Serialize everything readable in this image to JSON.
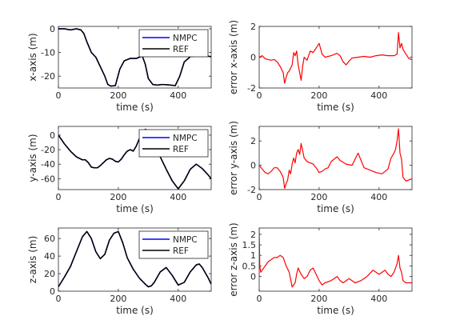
{
  "chart_data": [
    {
      "type": "line",
      "xlabel": "time (s)",
      "ylabel": "x-axis (m)",
      "xlim": [
        0,
        510
      ],
      "ylim": [
        -25,
        1
      ],
      "xticks": [
        "0",
        "200",
        "400"
      ],
      "yticks": [
        "0",
        "-10",
        "-20"
      ],
      "grid": false,
      "legend": {
        "position": "top-right",
        "entries": [
          "NMPC",
          "REF"
        ]
      },
      "series": [
        {
          "name": "NMPC",
          "color": "#0000ff",
          "x": [
            0,
            20,
            40,
            60,
            75,
            85,
            95,
            110,
            125,
            140,
            155,
            165,
            175,
            190,
            205,
            220,
            240,
            260,
            280,
            290,
            300,
            315,
            330,
            345,
            360,
            375,
            390,
            405,
            420,
            440,
            460,
            480,
            500,
            510
          ],
          "y": [
            0,
            0,
            -0.5,
            0,
            -0.5,
            -2,
            -5.5,
            -10,
            -12,
            -16,
            -20,
            -23.5,
            -24.2,
            -24,
            -17,
            -13.5,
            -12.5,
            -12.5,
            -11.5,
            -15,
            -21,
            -23.5,
            -23.8,
            -23.5,
            -23.6,
            -23.8,
            -24,
            -20,
            -14,
            -11.8,
            -11.5,
            -11.5,
            -11.6,
            -11.8
          ]
        },
        {
          "name": "REF",
          "color": "#000000",
          "x": [
            0,
            20,
            40,
            60,
            75,
            85,
            95,
            110,
            125,
            140,
            155,
            165,
            175,
            190,
            205,
            220,
            240,
            260,
            280,
            290,
            300,
            315,
            330,
            345,
            360,
            375,
            390,
            405,
            420,
            440,
            460,
            480,
            500,
            510
          ],
          "y": [
            0,
            0,
            -0.5,
            0,
            -0.5,
            -2,
            -5.5,
            -10,
            -12,
            -16,
            -20,
            -23.5,
            -24.2,
            -24,
            -17,
            -13.5,
            -12.5,
            -12.5,
            -11.5,
            -15,
            -21,
            -23.5,
            -23.8,
            -23.5,
            -23.6,
            -23.8,
            -24,
            -20,
            -14,
            -11.8,
            -11.5,
            -11.5,
            -11.6,
            -11.8
          ]
        }
      ]
    },
    {
      "type": "line",
      "xlabel": "time (s)",
      "ylabel": "error x-axis (m)",
      "xlim": [
        0,
        510
      ],
      "ylim": [
        -2,
        2
      ],
      "xticks": [
        "0",
        "200",
        "400"
      ],
      "yticks": [
        "-2",
        "0",
        "2"
      ],
      "grid": false,
      "series": [
        {
          "color": "#ff0000",
          "x": [
            0,
            10,
            20,
            30,
            40,
            50,
            60,
            70,
            80,
            85,
            90,
            95,
            100,
            110,
            115,
            120,
            125,
            130,
            135,
            140,
            145,
            150,
            160,
            170,
            180,
            190,
            200,
            210,
            220,
            240,
            260,
            270,
            280,
            290,
            300,
            310,
            330,
            350,
            370,
            390,
            410,
            430,
            450,
            460,
            465,
            470,
            475,
            480,
            490,
            500,
            510
          ],
          "y": [
            0,
            0.1,
            -0.1,
            -0.15,
            -0.2,
            -0.15,
            -0.3,
            -0.6,
            -1.0,
            -1.7,
            -1.3,
            -1.0,
            -0.9,
            -0.5,
            0.3,
            0.1,
            0.4,
            -0.5,
            -1.0,
            -1.5,
            -0.6,
            0.0,
            -0.2,
            0.4,
            0.3,
            0.6,
            0.9,
            0.2,
            0.0,
            0.1,
            0.25,
            0.1,
            -0.3,
            -0.5,
            -0.25,
            -0.05,
            0.0,
            0.05,
            0.0,
            0.1,
            0.15,
            0.1,
            0.1,
            0.2,
            1.6,
            0.6,
            0.9,
            0.5,
            0.2,
            -0.1,
            -0.15
          ]
        }
      ]
    },
    {
      "type": "line",
      "xlabel": "time (s)",
      "ylabel": "y-axis (m)",
      "xlim": [
        0,
        510
      ],
      "ylim": [
        -75,
        12
      ],
      "xticks": [
        "0",
        "200",
        "400"
      ],
      "yticks": [
        "0",
        "-20",
        "-40",
        "-60"
      ],
      "grid": false,
      "legend": {
        "position": "top-right",
        "entries": [
          "NMPC",
          "REF"
        ]
      },
      "series": [
        {
          "name": "NMPC",
          "color": "#0000ff",
          "x": [
            0,
            20,
            40,
            60,
            80,
            90,
            100,
            110,
            120,
            130,
            140,
            150,
            160,
            170,
            180,
            190,
            200,
            210,
            220,
            230,
            240,
            250,
            260,
            270,
            280,
            290,
            300,
            310,
            320,
            340,
            360,
            380,
            400,
            420,
            440,
            460,
            480,
            500,
            510
          ],
          "y": [
            0,
            -12,
            -22,
            -30,
            -34,
            -34,
            -38,
            -44,
            -45,
            -45,
            -42,
            -38,
            -34,
            -32,
            -33,
            -36,
            -37,
            -33,
            -27,
            -22,
            -20,
            -22,
            -15,
            -5,
            2,
            8,
            6,
            -5,
            -15,
            -30,
            -47,
            -63,
            -74,
            -63,
            -47,
            -40,
            -46,
            -55,
            -60
          ]
        },
        {
          "name": "REF",
          "color": "#000000",
          "x": [
            0,
            20,
            40,
            60,
            80,
            90,
            100,
            110,
            120,
            130,
            140,
            150,
            160,
            170,
            180,
            190,
            200,
            210,
            220,
            230,
            240,
            250,
            260,
            270,
            280,
            290,
            300,
            310,
            320,
            340,
            360,
            380,
            400,
            420,
            440,
            460,
            480,
            500,
            510
          ],
          "y": [
            0,
            -12,
            -22,
            -30,
            -34,
            -34,
            -38,
            -44,
            -45,
            -45,
            -42,
            -38,
            -34,
            -32,
            -33,
            -36,
            -37,
            -33,
            -27,
            -22,
            -20,
            -22,
            -15,
            -5,
            2,
            8,
            6,
            -5,
            -15,
            -30,
            -47,
            -63,
            -74,
            -63,
            -47,
            -40,
            -46,
            -55,
            -60
          ]
        }
      ]
    },
    {
      "type": "line",
      "xlabel": "time (s)",
      "ylabel": "error y-axis (m)",
      "xlim": [
        0,
        510
      ],
      "ylim": [
        -2,
        3.2
      ],
      "xticks": [
        "0",
        "200",
        "400"
      ],
      "yticks": [
        "-2",
        "0",
        "2"
      ],
      "grid": false,
      "series": [
        {
          "color": "#ff0000",
          "x": [
            0,
            10,
            20,
            30,
            40,
            50,
            60,
            70,
            80,
            85,
            90,
            95,
            100,
            105,
            110,
            115,
            120,
            125,
            130,
            135,
            140,
            150,
            160,
            170,
            180,
            190,
            200,
            210,
            220,
            230,
            240,
            250,
            260,
            270,
            290,
            310,
            330,
            350,
            370,
            390,
            410,
            430,
            440,
            450,
            455,
            460,
            465,
            470,
            475,
            480,
            490,
            500,
            510
          ],
          "y": [
            0,
            -0.3,
            -0.6,
            -0.7,
            -0.5,
            -0.2,
            -0.2,
            -0.5,
            -1.0,
            -1.9,
            -1.5,
            -1.2,
            -0.4,
            -0.7,
            0.1,
            0.6,
            0.2,
            1.0,
            1.3,
            0.9,
            1.8,
            0.6,
            0.3,
            0.2,
            0.1,
            -0.2,
            -0.6,
            -0.5,
            -0.3,
            -0.2,
            0.3,
            0.5,
            0.7,
            0.4,
            0.1,
            0.0,
            1.0,
            -0.2,
            -0.4,
            -0.6,
            -0.7,
            -0.3,
            0.6,
            1.0,
            1.3,
            2.0,
            3.0,
            1.0,
            0.5,
            -1.0,
            -1.3,
            -1.2,
            -1.1
          ]
        }
      ]
    },
    {
      "type": "line",
      "xlabel": "time (s)",
      "ylabel": "z-axis (m)",
      "xlim": [
        0,
        510
      ],
      "ylim": [
        0,
        72
      ],
      "xticks": [
        "0",
        "200",
        "400"
      ],
      "yticks": [
        "0",
        "20",
        "40",
        "60"
      ],
      "grid": false,
      "legend": {
        "position": "top-right",
        "entries": [
          "NMPC",
          "REF"
        ]
      },
      "series": [
        {
          "name": "NMPC",
          "color": "#0000ff",
          "x": [
            0,
            20,
            40,
            60,
            80,
            95,
            110,
            125,
            140,
            155,
            170,
            185,
            200,
            215,
            230,
            250,
            270,
            290,
            300,
            310,
            320,
            340,
            360,
            380,
            400,
            420,
            440,
            460,
            470,
            480,
            500,
            510
          ],
          "y": [
            5,
            16,
            28,
            45,
            62,
            68,
            60,
            45,
            37,
            42,
            58,
            66,
            68,
            55,
            38,
            25,
            15,
            8,
            5,
            6,
            10,
            22,
            27,
            18,
            7,
            10,
            22,
            30,
            31,
            27,
            15,
            8
          ]
        },
        {
          "name": "REF",
          "color": "#000000",
          "x": [
            0,
            20,
            40,
            60,
            80,
            95,
            110,
            125,
            140,
            155,
            170,
            185,
            200,
            215,
            230,
            250,
            270,
            290,
            300,
            310,
            320,
            340,
            360,
            380,
            400,
            420,
            440,
            460,
            470,
            480,
            500,
            510
          ],
          "y": [
            5,
            16,
            28,
            45,
            62,
            68,
            60,
            45,
            37,
            42,
            58,
            66,
            68,
            55,
            38,
            25,
            15,
            8,
            5,
            6,
            10,
            22,
            27,
            18,
            7,
            10,
            22,
            30,
            31,
            27,
            15,
            8
          ]
        }
      ]
    },
    {
      "type": "line",
      "xlabel": "time (s)",
      "ylabel": "error z-axis (m)",
      "xlim": [
        0,
        510
      ],
      "ylim": [
        -0.7,
        2.3
      ],
      "xticks": [
        "0",
        "200",
        "400"
      ],
      "yticks": [
        "0",
        "0.5",
        "1",
        "1.5",
        "2"
      ],
      "grid": false,
      "series": [
        {
          "color": "#ff0000",
          "x": [
            0,
            2,
            5,
            10,
            20,
            30,
            40,
            50,
            60,
            70,
            80,
            90,
            100,
            110,
            120,
            125,
            130,
            140,
            150,
            160,
            170,
            180,
            200,
            210,
            220,
            240,
            260,
            270,
            280,
            300,
            320,
            340,
            360,
            380,
            400,
            420,
            430,
            440,
            450,
            460,
            465,
            470,
            475,
            480,
            490,
            500,
            510
          ],
          "y": [
            2.2,
            0.5,
            0.2,
            0.3,
            0.5,
            0.7,
            0.8,
            0.9,
            0.9,
            1.0,
            0.9,
            0.5,
            0.2,
            -0.5,
            -0.3,
            0.1,
            0.4,
            0.1,
            -0.1,
            0.0,
            0.3,
            0.4,
            -0.2,
            -0.4,
            -0.3,
            -0.2,
            0.0,
            -0.2,
            -0.3,
            -0.1,
            -0.3,
            -0.2,
            0.0,
            0.3,
            0.1,
            0.3,
            0.1,
            0.0,
            0.2,
            0.6,
            1.0,
            0.4,
            0.2,
            -0.2,
            -0.3,
            -0.3,
            -0.3
          ]
        }
      ]
    }
  ]
}
